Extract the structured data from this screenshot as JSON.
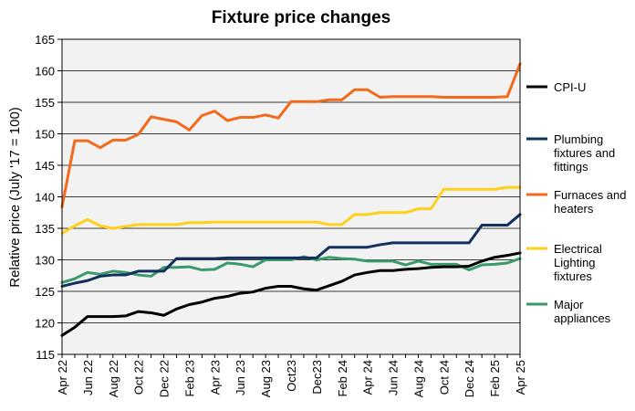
{
  "chart_data": {
    "type": "line",
    "title": "Fixture price changes",
    "xlabel": "",
    "ylabel": "Relative price (July '17 = 100)",
    "ylim": [
      115,
      165
    ],
    "yticks": [
      "115",
      "120",
      "125",
      "130",
      "135",
      "140",
      "145",
      "150",
      "155",
      "160",
      "165"
    ],
    "xticks": [
      "Apr 22",
      "Jun 22",
      "Aug 22",
      "Oct 22",
      "Dec 22",
      "Feb 23",
      "Apr 23",
      "Jun 23",
      "Aug 23",
      "Oct23",
      "Dec23",
      "Feb 24",
      "Apr 24",
      "Jun 24",
      "Aug 24",
      "Oct 24",
      "Dec 24",
      "Feb 25",
      "Apr 25"
    ],
    "x": [
      "Apr 22",
      "May 22",
      "Jun 22",
      "Jul 22",
      "Aug 22",
      "Sep 22",
      "Oct 22",
      "Nov 22",
      "Dec 22",
      "Jan 23",
      "Feb 23",
      "Mar 23",
      "Apr 23",
      "May 23",
      "Jun 23",
      "Jul 23",
      "Aug 23",
      "Sep 23",
      "Oct 23",
      "Nov 23",
      "Dec 23",
      "Jan 24",
      "Feb 24",
      "Mar 24",
      "Apr 24",
      "May 24",
      "Jun 24",
      "Jul 24",
      "Aug 24",
      "Sep 24",
      "Oct 24",
      "Nov 24",
      "Dec 24",
      "Jan 25",
      "Feb 25",
      "Mar 25",
      "Apr 25"
    ],
    "grid": true,
    "legend_position": "right",
    "series": [
      {
        "name": "CPI-U",
        "color": "#000000",
        "values": [
          118.0,
          119.3,
          121.0,
          121.0,
          121.0,
          121.1,
          121.8,
          121.6,
          121.2,
          122.2,
          122.9,
          123.3,
          123.9,
          124.2,
          124.7,
          124.9,
          125.5,
          125.8,
          125.8,
          125.4,
          125.2,
          125.9,
          126.6,
          127.6,
          128.0,
          128.3,
          128.3,
          128.5,
          128.6,
          128.8,
          128.9,
          128.9,
          129.0,
          129.8,
          130.4,
          130.7,
          131.1
        ]
      },
      {
        "name": "Plumbing fixtures and fittings",
        "color": "#12305e",
        "values": [
          125.8,
          126.3,
          126.7,
          127.4,
          127.6,
          127.6,
          128.2,
          128.2,
          128.2,
          130.2,
          130.2,
          130.2,
          130.2,
          130.3,
          130.3,
          130.3,
          130.3,
          130.3,
          130.3,
          130.3,
          130.3,
          132.0,
          132.0,
          132.0,
          132.0,
          132.4,
          132.7,
          132.7,
          132.7,
          132.7,
          132.7,
          132.7,
          132.7,
          135.5,
          135.5,
          135.5,
          137.2
        ]
      },
      {
        "name": "Furnaces and heaters",
        "color": "#f26a1b",
        "values": [
          138.4,
          148.9,
          148.9,
          147.8,
          149.0,
          149.0,
          149.9,
          152.7,
          152.3,
          151.9,
          150.6,
          152.9,
          153.6,
          152.1,
          152.6,
          152.6,
          153.0,
          152.5,
          155.1,
          155.1,
          155.1,
          155.4,
          155.4,
          157.0,
          157.0,
          155.8,
          155.9,
          155.9,
          155.9,
          155.9,
          155.8,
          155.8,
          155.8,
          155.8,
          155.8,
          155.9,
          161.1
        ]
      },
      {
        "name": "Electrical Lighting fixtures",
        "color": "#ffd11a",
        "values": [
          134.2,
          135.4,
          136.4,
          135.4,
          135.0,
          135.3,
          135.6,
          135.6,
          135.6,
          135.6,
          135.9,
          135.9,
          136.0,
          136.0,
          136.0,
          136.0,
          136.0,
          136.0,
          136.0,
          136.0,
          136.0,
          135.6,
          135.6,
          137.2,
          137.2,
          137.5,
          137.5,
          137.5,
          138.1,
          138.1,
          141.2,
          141.2,
          141.2,
          141.2,
          141.2,
          141.5,
          141.5
        ]
      },
      {
        "name": "Major appliances",
        "color": "#3a9a6a",
        "values": [
          126.4,
          127.0,
          128.0,
          127.7,
          128.2,
          128.0,
          127.6,
          127.4,
          128.8,
          128.8,
          128.9,
          128.4,
          128.5,
          129.5,
          129.3,
          128.9,
          130.0,
          130.0,
          130.0,
          130.5,
          130.0,
          130.4,
          130.2,
          130.1,
          129.8,
          129.8,
          129.8,
          129.2,
          129.8,
          129.3,
          129.3,
          129.3,
          128.4,
          129.2,
          129.3,
          129.5,
          130.2
        ]
      }
    ],
    "legend": [
      {
        "lines": [
          "CPI-U"
        ]
      },
      {
        "lines": [
          "Plumbing",
          "fixtures and",
          "fittings"
        ]
      },
      {
        "lines": [
          "Furnaces and",
          "heaters"
        ]
      },
      {
        "lines": [
          "Electrical",
          "Lighting",
          "fixtures"
        ]
      },
      {
        "lines": [
          "Major",
          "appliances"
        ]
      }
    ]
  }
}
